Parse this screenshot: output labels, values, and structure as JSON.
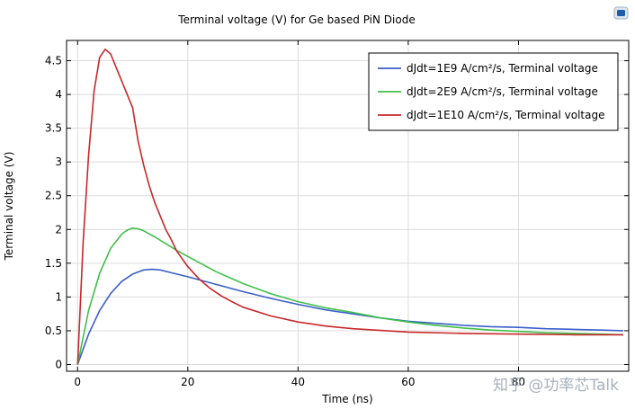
{
  "chart_data": {
    "type": "line",
    "title": "Terminal voltage (V) for Ge based PiN Diode",
    "xlabel": "Time (ns)",
    "ylabel": "Terminal voltage (V)",
    "xlim": [
      -2,
      100
    ],
    "ylim": [
      -0.1,
      4.8
    ],
    "xticks": [
      0,
      20,
      40,
      60,
      80
    ],
    "yticks": [
      0,
      0.5,
      1,
      1.5,
      2,
      2.5,
      3,
      3.5,
      4,
      4.5
    ],
    "xtick_labels": [
      "0",
      "20",
      "40",
      "60",
      "80"
    ],
    "ytick_labels": [
      "0",
      "0.5",
      "1",
      "1.5",
      "2",
      "2.5",
      "3",
      "3.5",
      "4",
      "4.5"
    ],
    "grid": true,
    "legend_position": "top-right",
    "series": [
      {
        "name": "dJdt=1E9 A/cm²/s, Terminal voltage",
        "color": "#3a5fc8",
        "x": [
          0,
          2,
          4,
          6,
          8,
          10,
          12,
          13.5,
          15,
          17,
          20,
          25,
          30,
          35,
          40,
          45,
          50,
          55,
          60,
          65,
          70,
          75,
          80,
          85,
          90,
          95,
          99
        ],
        "y": [
          0,
          0.45,
          0.8,
          1.05,
          1.23,
          1.34,
          1.4,
          1.41,
          1.4,
          1.36,
          1.3,
          1.19,
          1.08,
          0.98,
          0.89,
          0.81,
          0.75,
          0.69,
          0.64,
          0.61,
          0.58,
          0.56,
          0.55,
          0.53,
          0.52,
          0.51,
          0.5
        ]
      },
      {
        "name": "dJdt=2E9 A/cm²/s, Terminal voltage",
        "color": "#3fbf4a",
        "x": [
          0,
          2,
          4,
          6,
          8,
          9,
          10,
          11,
          12,
          14,
          16,
          18,
          20,
          25,
          30,
          35,
          40,
          45,
          50,
          55,
          60,
          65,
          70,
          75,
          80,
          85,
          90,
          95,
          99
        ],
        "y": [
          0,
          0.8,
          1.35,
          1.72,
          1.93,
          1.99,
          2.02,
          2.01,
          1.98,
          1.89,
          1.79,
          1.69,
          1.6,
          1.38,
          1.2,
          1.05,
          0.93,
          0.84,
          0.77,
          0.69,
          0.63,
          0.58,
          0.54,
          0.51,
          0.49,
          0.47,
          0.46,
          0.45,
          0.44
        ]
      },
      {
        "name": "dJdt=1E10 A/cm²/s, Terminal voltage",
        "color": "#c8282a",
        "x": [
          0,
          1,
          2,
          3,
          4,
          5,
          6,
          7,
          8,
          9,
          10,
          11,
          12,
          13,
          14,
          15,
          16,
          17,
          18,
          20,
          22,
          24,
          26,
          28,
          30,
          35,
          40,
          45,
          50,
          60,
          70,
          80,
          90,
          99
        ],
        "y": [
          0,
          1.8,
          3.1,
          4.05,
          4.55,
          4.67,
          4.6,
          4.4,
          4.2,
          4.0,
          3.8,
          3.3,
          2.95,
          2.65,
          2.4,
          2.2,
          2.0,
          1.85,
          1.68,
          1.45,
          1.27,
          1.13,
          1.02,
          0.93,
          0.85,
          0.72,
          0.63,
          0.57,
          0.53,
          0.48,
          0.46,
          0.45,
          0.44,
          0.44
        ]
      }
    ]
  },
  "watermark": "知乎 @功率芯Talk",
  "toolbar_icon": "app-icon"
}
